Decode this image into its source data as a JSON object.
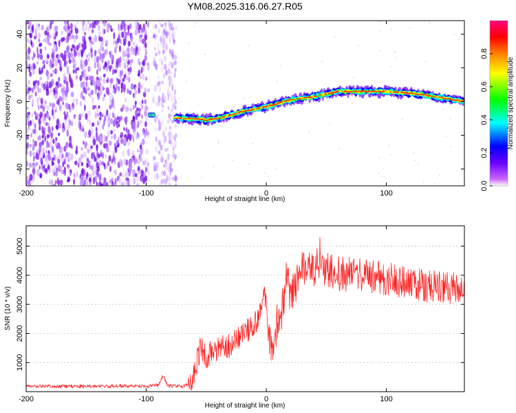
{
  "title": "YM08.2025.316.06.27.R05",
  "chart_data": [
    {
      "type": "heatmap",
      "name": "spectrogram",
      "xlabel": "Height of straight line (km)",
      "ylabel": "Frequency (Hz)",
      "xlim": [
        -200,
        165
      ],
      "ylim": [
        -50,
        48
      ],
      "xticks": [
        -200,
        -100,
        0,
        100
      ],
      "yticks": [
        -40,
        -20,
        0,
        20,
        40
      ],
      "colorbar": {
        "label": "Normalized spectral amplitude",
        "range": [
          0,
          1
        ],
        "ticks": [
          0.0,
          0.2,
          0.4,
          0.6,
          0.8
        ],
        "colors": [
          "#ffffff",
          "#cc66ff",
          "#6600ff",
          "#0000ff",
          "#00ffff",
          "#00ff00",
          "#ffff00",
          "#ff8000",
          "#ff0000",
          "#ff0080"
        ]
      },
      "noise_region_x": [
        -200,
        -75
      ],
      "ridge": {
        "x": [
          -100,
          -80,
          -75,
          -60,
          -50,
          -40,
          -20,
          0,
          20,
          40,
          60,
          80,
          100,
          120,
          140,
          165
        ],
        "y": [
          -8,
          -8,
          -10,
          -10,
          -11,
          -10,
          -6,
          -3,
          1,
          3,
          6,
          6,
          6,
          5,
          3,
          0
        ]
      }
    },
    {
      "type": "line",
      "name": "snr",
      "xlabel": "Height of straight line (km)",
      "ylabel": "SNR (10 * v/v)",
      "xlim": [
        -200,
        165
      ],
      "ylim": [
        0,
        5700
      ],
      "xticks": [
        -200,
        -100,
        0,
        100
      ],
      "yticks": [
        1000,
        2000,
        3000,
        4000,
        5000
      ],
      "color": "#ff2020",
      "series": [
        {
          "name": "SNR",
          "x": [
            -200,
            -150,
            -100,
            -90,
            -86,
            -82,
            -70,
            -62,
            -55,
            -50,
            -40,
            -30,
            -20,
            -10,
            -5,
            0,
            2,
            5,
            10,
            15,
            18,
            20,
            25,
            30,
            40,
            50,
            60,
            80,
            100,
            120,
            140,
            165
          ],
          "values": [
            180,
            185,
            190,
            220,
            560,
            200,
            180,
            300,
            1500,
            1200,
            1500,
            1600,
            1900,
            2300,
            2700,
            3400,
            1700,
            1200,
            2600,
            3000,
            4100,
            3300,
            3700,
            4300,
            4100,
            4200,
            4050,
            4000,
            3900,
            3700,
            3650,
            3500
          ]
        }
      ]
    }
  ]
}
